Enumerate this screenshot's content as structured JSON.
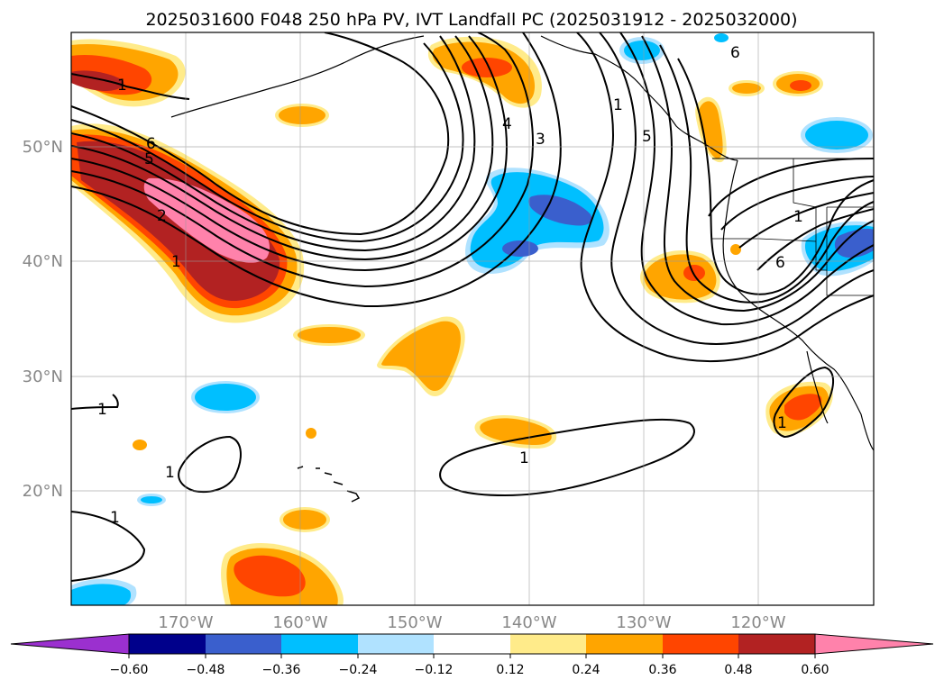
{
  "figure": {
    "title": "2025031600 F048 250 hPa PV, IVT Landfall PC (2025031912 - 2025032000)"
  },
  "map": {
    "lat_labels": [
      "50°N",
      "40°N",
      "30°N",
      "20°N"
    ],
    "lon_labels": [
      "170°W",
      "160°W",
      "150°W",
      "140°W",
      "130°W",
      "120°W"
    ],
    "gridlines": true
  },
  "colorbar": {
    "ticks": [
      "−0.60",
      "−0.48",
      "−0.36",
      "−0.24",
      "−0.12",
      "0.12",
      "0.24",
      "0.36",
      "0.48",
      "0.60"
    ],
    "colors": [
      "#9b30cf",
      "#00008b",
      "#3a5fcd",
      "#00bfff",
      "#b0e2ff",
      "#ffffff",
      "#ffeb8a",
      "#ffa500",
      "#ff4500",
      "#b22222",
      "#ff82ab"
    ],
    "extend": "both"
  },
  "contour_labels": [
    "1",
    "1",
    "2",
    "6",
    "5",
    "1",
    "1",
    "4",
    "3",
    "5",
    "6",
    "1",
    "6",
    "1",
    "1",
    "1",
    "1"
  ],
  "palette": {
    "c012": "#ffeb8a",
    "c024": "#ffa500",
    "c036": "#ff4500",
    "c048": "#b22222",
    "c060": "#ff82ab",
    "n012": "#b0e2ff",
    "n024": "#00bfff",
    "n036": "#3a5fcd"
  }
}
